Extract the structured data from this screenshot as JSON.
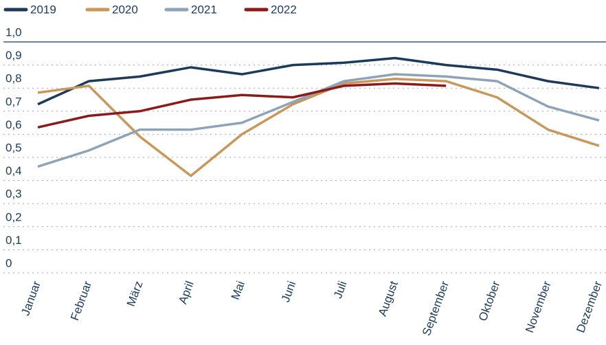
{
  "chart_data": {
    "type": "line",
    "categories": [
      "Januar",
      "Februar",
      "März",
      "April",
      "Mai",
      "Juni",
      "Juli",
      "August",
      "September",
      "Oktober",
      "November",
      "Dezember"
    ],
    "series": [
      {
        "name": "2019",
        "color": "#1b3a5c",
        "values": [
          0.73,
          0.83,
          0.85,
          0.89,
          0.86,
          0.9,
          0.91,
          0.93,
          0.9,
          0.88,
          0.83,
          0.8
        ]
      },
      {
        "name": "2020",
        "color": "#c9975a",
        "values": [
          0.78,
          0.81,
          0.59,
          0.42,
          0.6,
          0.73,
          0.82,
          0.84,
          0.83,
          0.76,
          0.62,
          0.55
        ]
      },
      {
        "name": "2021",
        "color": "#8fa3b8",
        "values": [
          0.46,
          0.53,
          0.62,
          0.62,
          0.65,
          0.74,
          0.83,
          0.86,
          0.85,
          0.83,
          0.72,
          0.66
        ]
      },
      {
        "name": "2022",
        "color": "#8b1a1a",
        "values": [
          0.63,
          0.68,
          0.7,
          0.75,
          0.77,
          0.76,
          0.81,
          0.82,
          0.81,
          null,
          null,
          null
        ]
      }
    ],
    "ylim": [
      0,
      1
    ],
    "yticks": [
      0,
      {
        "value": 0.1,
        "label": "0,1"
      },
      {
        "value": 0.2,
        "label": "0,2"
      },
      {
        "value": 0.3,
        "label": "0,3"
      },
      {
        "value": 0.4,
        "label": "0,4"
      },
      {
        "value": 0.5,
        "label": "0,5"
      },
      {
        "value": 0.6,
        "label": "0,6"
      },
      {
        "value": 0.7,
        "label": "0,7"
      },
      {
        "value": 0.8,
        "label": "0,8"
      },
      {
        "value": 0.9,
        "label": "0,9"
      },
      {
        "value": 1,
        "label": "1,0"
      }
    ],
    "grid": true,
    "legend": "top-left"
  }
}
